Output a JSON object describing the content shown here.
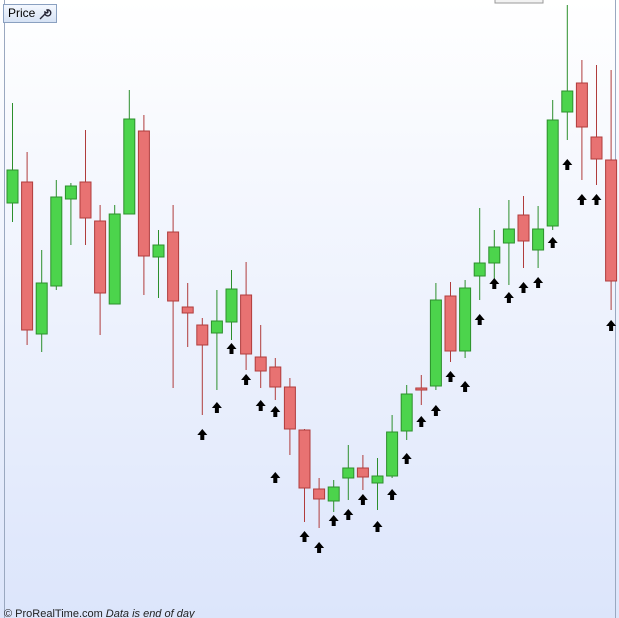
{
  "header": {
    "panel_label": "Price"
  },
  "footer": {
    "copyright": "© ProRealTime.com",
    "note": "Data is end of day"
  },
  "chart_data": {
    "type": "candlestick",
    "ylim": [
      0,
      618
    ],
    "up_color": "#4cd44c",
    "down_color": "#e87272",
    "open": [
      415,
      436,
      284,
      332,
      419,
      436,
      397,
      314,
      404,
      487,
      361,
      386,
      311,
      293,
      285,
      296,
      323,
      261,
      251,
      231,
      188,
      129,
      117,
      140,
      150,
      135,
      142,
      187,
      230,
      232,
      322,
      267,
      342,
      355,
      375,
      403,
      368,
      392,
      506,
      535,
      481,
      458
    ],
    "high": [
      515,
      466,
      368,
      438,
      435,
      488,
      413,
      413,
      528,
      503,
      388,
      413,
      335,
      300,
      328,
      348,
      356,
      293,
      260,
      240,
      189,
      140,
      138,
      173,
      163,
      160,
      203,
      233,
      243,
      335,
      336,
      338,
      410,
      388,
      418,
      422,
      412,
      518,
      613,
      558,
      553,
      548
    ],
    "low": [
      396,
      273,
      266,
      328,
      373,
      373,
      283,
      314,
      404,
      323,
      320,
      230,
      271,
      203,
      228,
      278,
      248,
      230,
      218,
      163,
      96,
      90,
      106,
      118,
      128,
      108,
      140,
      178,
      213,
      228,
      256,
      260,
      318,
      338,
      333,
      350,
      350,
      388,
      478,
      438,
      433,
      308
    ],
    "close": [
      448,
      288,
      335,
      421,
      432,
      400,
      325,
      404,
      499,
      362,
      373,
      317,
      305,
      273,
      297,
      329,
      264,
      247,
      231,
      189,
      130,
      119,
      131,
      150,
      141,
      142,
      186,
      224,
      228,
      318,
      267,
      330,
      355,
      371,
      389,
      377,
      389,
      498,
      527,
      491,
      459,
      337
    ],
    "signal_index": [
      13,
      14,
      15,
      16,
      17,
      18,
      18,
      20,
      21,
      22,
      23,
      24,
      25,
      26,
      27,
      28,
      29,
      30,
      31,
      32,
      33,
      34,
      35,
      36,
      37,
      38,
      39,
      40,
      41
    ],
    "signal_level": [
      183,
      210,
      269,
      238,
      212,
      206,
      140,
      81,
      70,
      97,
      103,
      118,
      91,
      123,
      159,
      196,
      207,
      241,
      231,
      298,
      334,
      320,
      330,
      335,
      375,
      453,
      418,
      418,
      292
    ]
  }
}
